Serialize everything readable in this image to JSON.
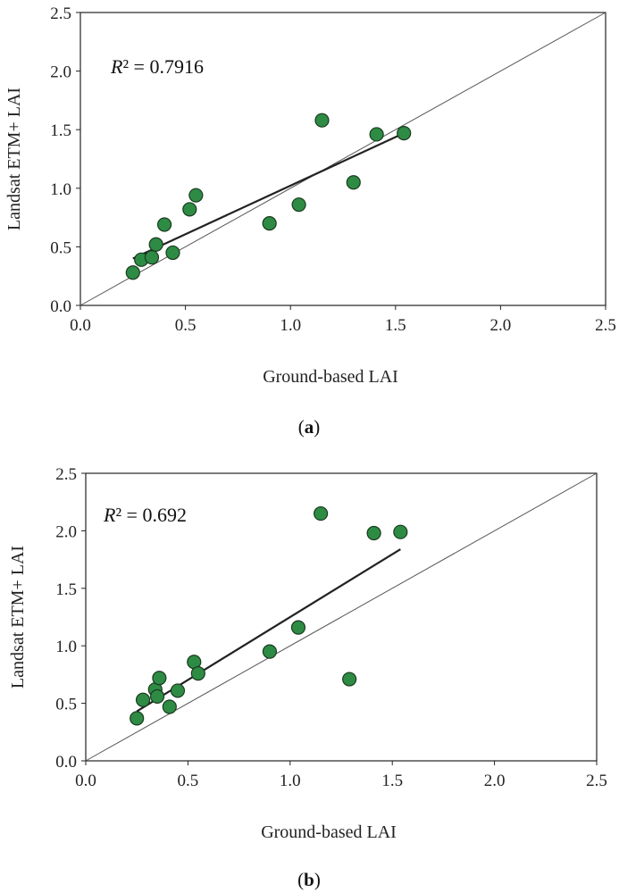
{
  "colors": {
    "point_fill": "#2e8b44",
    "point_stroke": "#1a3a1f",
    "line": "#222222",
    "frame": "#222222"
  },
  "chart_data": [
    {
      "type": "scatter",
      "panel_label": "a",
      "xlabel": "Ground-based LAI",
      "ylabel": "Landsat ETM+ LAI",
      "xlim": [
        0,
        2.5
      ],
      "ylim": [
        0,
        2.5
      ],
      "xticks": [
        "0.0",
        "0.5",
        "1.0",
        "1.5",
        "2.0",
        "2.5"
      ],
      "yticks": [
        "0.0",
        "0.5",
        "1.0",
        "1.5",
        "2.0",
        "2.5"
      ],
      "r2_symbol": "R",
      "r2_text": "² = 0.7916",
      "one_to_one_line": true,
      "points": [
        [
          0.25,
          0.28
        ],
        [
          0.29,
          0.39
        ],
        [
          0.34,
          0.41
        ],
        [
          0.36,
          0.52
        ],
        [
          0.4,
          0.69
        ],
        [
          0.44,
          0.45
        ],
        [
          0.52,
          0.82
        ],
        [
          0.55,
          0.94
        ],
        [
          0.9,
          0.7
        ],
        [
          1.04,
          0.86
        ],
        [
          1.15,
          1.58
        ],
        [
          1.3,
          1.05
        ],
        [
          1.41,
          1.46
        ],
        [
          1.54,
          1.47
        ]
      ],
      "fit_line": [
        [
          0.25,
          0.4
        ],
        [
          1.54,
          1.47
        ]
      ]
    },
    {
      "type": "scatter",
      "panel_label": "b",
      "xlabel": "Ground-based LAI",
      "ylabel": "Landsat ETM+ LAI",
      "xlim": [
        0,
        2.5
      ],
      "ylim": [
        0,
        2.5
      ],
      "xticks": [
        "0.0",
        "0.5",
        "1.0",
        "1.5",
        "2.0",
        "2.5"
      ],
      "yticks": [
        "0.0",
        "0.5",
        "1.0",
        "1.5",
        "2.0",
        "2.5"
      ],
      "r2_symbol": "R",
      "r2_text": "² = 0.692",
      "one_to_one_line": true,
      "points": [
        [
          0.25,
          0.37
        ],
        [
          0.28,
          0.53
        ],
        [
          0.34,
          0.62
        ],
        [
          0.35,
          0.56
        ],
        [
          0.36,
          0.72
        ],
        [
          0.41,
          0.47
        ],
        [
          0.45,
          0.61
        ],
        [
          0.53,
          0.86
        ],
        [
          0.55,
          0.76
        ],
        [
          0.9,
          0.95
        ],
        [
          1.04,
          1.16
        ],
        [
          1.15,
          2.15
        ],
        [
          1.29,
          0.71
        ],
        [
          1.41,
          1.98
        ],
        [
          1.54,
          1.99
        ]
      ],
      "fit_line": [
        [
          0.25,
          0.43
        ],
        [
          1.54,
          1.84
        ]
      ]
    }
  ]
}
